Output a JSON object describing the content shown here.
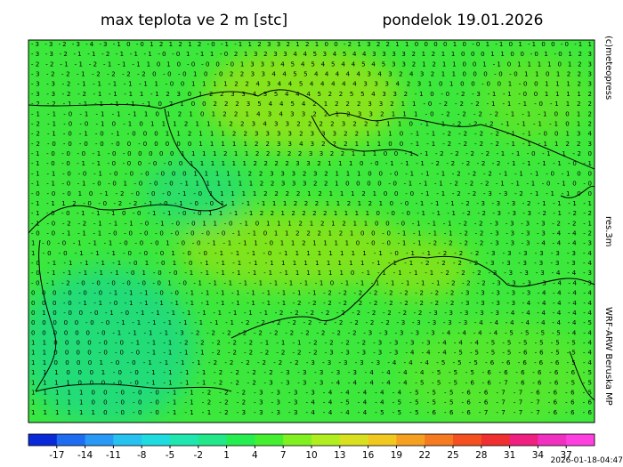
{
  "title": "max teplota ve 2 m [stc]",
  "date": "pondelok 19.01.2026",
  "credit": "(c)meteopress",
  "resolution": "res.3m",
  "model": "WRF-ARW Beruska MP",
  "timestamp": "2026-01-18-04:47",
  "grid_rows": [
    "-3 -3 -2 -3 -4 -3 -1 0 -0 1 2 1 2 1 2 -0 -1 -1 1 2 3 3 2 1 2 1 0 0 -2 1 3 2 2 1 1 0 0 0 0 1 0 -0 1 -1 0 1 -1 0 0 -0 -1 1",
    "-3 -3 -2 -1 -1 -2 -1 -1 -1 -0 -0 1 -1 1 -0 2 1 3 2 3 3 4 4 5 3 4 5 4 4 3 3 3 3 2 1 2 1 1 0 0 0 1 1 0 0 -0 1 -0 1 2 3",
    "-2 -2 -1 -1 -2 -1 -1 -1 1 0 1 0 -0 -0 0 -0 1 3 3 3 4 5 4 5 4 5 4 4 5 4 5 3 3 2 1 2 1 1 0 0 1 -1 0 1 1 1 1 0 1 2 3",
    "-3 -2 -2 -1 -2 -2 -2 -2 0 -0 -0 1 0 -0 2 2 3 3 4 4 5 5 4 4 4 4 4 3 4 3 2 4 3 2 1 1 0 0 0 -0 -0 1 1 0 1 2 2 3",
    "-3 -3 -2 -1 -1 -1 -1 -1 1 -0 0 1 1 1 1 2 2 4 3 4 4 5 4 4 4 4 4 3 3 3 4 2 3 1 0 1 0 0 -0 0 1 -0 0 1 1 1 2 3",
    "-3 -3 -2 -2 -1 -1 -1 1 -1 2 3 0 1 2 2 3 3 4 3 5 4 4 4 5 2 2 5 5 4 3 3 2 -1 0 -0 -2 -3 -1 -1 -0 0 1 1 1 1 2",
    "-2 -2 -1 -1 -1 -1 -1 -1 0 2 1 0 0 2 2 2 3 5 4 4 5 4 2 1 2 2 2 3 3 2 1 1 -0 -2 -2 -2 -1 -1 -1 -0 -1 1 2 2",
    "-1 -1 -0 -1 -1 -1 -1 1 0 1 2 1 0 1 2 2 1 4 3 4 3 3 2 2 1 2 3 3 2 1 1 1 -0 -2 -2 -2 -2 -1 -1 -1 0 0 1 2",
    "-2 -1 -0 -0 -1 0 -1 0 1 1 1 2 1 1 1 2 2 3 4 3 3 2 2 2 2 3 2 2 2 1 1 0 -1 -1 -2 -2 -2 -1 -1 -1 -1 0 1 2",
    "-2 -1 -0 -1 -0 -1 -0 0 0 1 1 2 1 1 1 2 2 3 3 3 3 2 3 3 3 2 2 1 1 1 0 -1 -1 -2 -2 -2 -2 -1 -1 -0 0 1 3 4",
    "-2 -0 -0 -0 -0 -0 0 -0 0 0 0 0 1 1 1 1 1 2 2 3 3 4 3 2 2 2 1 1 1 0 0 -1 -1 -2 -2 -2 -2 -1 -1 -1 1 2 2 3",
    "-1 -0 -0 -0 -1 -0 -0 0 0 0 0 1 1 1 1 2 1 1 2 2 2 2 2 3 3 2 2 1 1 1 0 0 -1 -1 -2 -2 -2 -2 -1 -1 -0 -1 -1 -2 0",
    "-1 -0 -0 -1 -1 -0 -0 0 -0 -0 0 1 1 1 1 1 1 2 2 2 2 3 3 2 1 1 1 0 -0 -1 -1 -1 -2 -2 -2 -2 -2 -1 -1 -1 -1 -0 -1",
    "-1 -1 -0 -0 -1 -0 -0 -0 -0 0 0 1 1 1 1 1 2 2 3 3 3 2 3 2 1 1 1 0 0 -0 -1 -1 -1 -2 -2 -2 -1 -1 -1 -0 -1 0 0",
    "-1 -1 -0 -1 -0 -0 1 -0 -0 -0 -1 1 1 1 1 1 1 2 2 3 3 3 2 2 1 0 0 0 0 -0 -1 -1 -1 -2 -2 -2 -1 -1 -1 -0 -1 0 -0",
    "-0 -0 -0 1 0 -1 -2 -0 -0 -0 -1 -0 1 1 1 1 1 2 2 2 2 1 2 1 1 1 2 1 0 0 -0 -1 -1 -2 -2 -3 -3 -2 -1 -1 -1 0 0",
    "-1 -1 1 2 -0 -0 -2 -2 -1 -0 -1 -0 -0 1 1 -1 -1 1 1 2 2 2 1 1 2 1 2 1 0 -0 -1 -1 -1 -2 -3 -3 -3 -2 -1 -1 -1 -1",
    "-1 -0 -0 -1 -1 -1 0 -0 -1 -1 -0 -0 1 1 -1 -1 2 2 1 2 2 2 2 1 1 1 1 0 -0 -0 -1 -1 -1 -2 -2 -3 -3 -3 -2 -1 -2 -2",
    "-1 -0 -2 -2 -1 -1 -1 -0 -1 -0 -0 1 1 -0 -1 0 1 1 1 2 1 2 1 2 1 1 0 0 -0 -1 -1 -1 -2 -2 -3 -3 -3 -3 -2 -2 -1",
    "-0 -0 -1 -1 -1 -0 -0 -0 -0 -0 -0 -0 -0 -1 -1 0 1 1 2 2 2 1 2 1 0 0 -0 -1 -1 -1 -1 -2 -2 -3 -3 -3 -3 -4 -4 -2",
    "1 -0 -0 -1 -1 -1 -0 -0 -0 1 -0 -0 -1 -1 -1 1 -0 1 1 2 1 1 1 1 0 -0 -0 -1 -1 -2 -2 -2 -2 -3 -3 -3 -4 -4 -4 -3",
    "1 -0 -0 -1 -1 -1 -0 -0 -0 1 -0 -0 -1 -1 -1 -0 -1 1 1 1 1 1 1 1 -1 -0 -1 -1 -2 -2 -2 -3 -3 -3 -3 -3 -3 -4",
    "-0 -1 -1 -1 -1 -1 -0 1 -0 1 -0 -1 -1 -1 -1 -1 1 1 1 1 1 1 1 1 -1 -1 -1 -2 -2 -2 -2 -3 -3 -3 -3 -3 -3 -4",
    "-0 -1 -1 -1 -1 -1 -0 1 -0 -0 -1 -1 -1 -1 -1 -1 -1 1 1 1 1 1 0 -1 -1 -1 -1 -1 -2 -2 -2 -3 -3 -3 -3 -4 -4 -3",
    "-0 -1 -2 -0 -0 -0 -0 -0 -0 1 -0 -1 -1 -1 -1 -1 -1 -1 -1 -1 0 -1 -1 -1 -1 -1 -1 -1 -2 -2 -2 -3 -3 -3 -3 -4 -4 -3",
    "0 0 0 -0 -0 -0 -1 -1 -1 -0 -0 -1 -1 -1 -1 -1 -1 -1 -1 -1 -2 -2 -2 -2 -2 -2 -2 -2 -2 -3 -3 -3 -3 -3 -4 -4 -4 -4",
    "0 0 0 -0 -1 -1 -0 -1 -1 -1 -1 -1 -1 -1 -1 -1 -1 -1 -2 -2 -2 -2 -2 -2 -2 -2 -2 -2 -2 -3 -3 -3 -3 -4 -4 -4 -4 -4",
    "0 1 0 -0 0 -0 -1 -0 -1 -1 -1 -1 -1 -1 -1 -1 -1 -2 -2 -2 -2 -2 -2 -2 -2 -2 -2 -3 -3 -3 -3 -3 -4 -4 -4 -4 -4 -4",
    "0 0 0 0 0 -0 -0 -1 -1 -1 -1 -1 -1 -1 -1 -2 -2 -2 -2 -2 -2 -2 -2 -2 -2 -3 -3 -3 -3 -3 -4 -4 -4 -4 -4 -4 -4 -5",
    "0 0 0 0 0 0 -0 -1 -1 -1 -1 -3 -2 -2 -2 -2 -2 -2 -2 -2 -2 -2 -2 -3 -3 -3 -3 -3 -4 -4 -4 -4 -5 -5 -5 -5 -4 -4",
    "1 1 0 0 0 0 -0 -0 -1 -1 -1 -2 -2 -2 -2 -2 -1 -1 -1 -2 -2 -2 -2 -3 -3 -3 -3 -4 -4 -4 -5 -5 -5 -5 -5 -5 -4",
    "1 1 0 0 0 0 -0 -0 -0 -1 -1 -1 -1 -2 -2 -2 -2 -2 -2 -2 -3 -3 -3 -3 -3 -4 -4 -4 -5 -5 -5 -5 -6 -6 -5 -5 -4",
    "1 1 0 0 0 0 1 -0 -0 -1 -1 -1 -1 -2 -2 -2 -2 -2 -2 -3 -3 -3 -3 -3 -4 -4 -4 -5 -5 -5 -6 -6 -6 -6 -6 -5 -4",
    "1 1 1 0 0 0 1 -0 -0 -1 -1 -1 -1 -2 -2 -2 -2 -3 -3 -3 -3 -3 -4 -4 -4 -4 -5 -5 -5 -6 -6 -6 -6 -6 -6 -5",
    "1 1 1 1 0 0 0 -0 -0 -1 -1 -1 -1 -2 -2 -2 -3 -3 -3 -3 -4 -4 -4 -4 -4 -5 -5 -5 -6 -6 -7 -6 -6 -6 -5 -5",
    "1 1 1 1 1 0 0 -0 -0 -0 -1 -1 -2 -2 -2 -3 -3 -3 -3 -4 -4 -4 -4 -4 -5 -5 -5 -6 -6 -7 -7 -6 -6 -6 -5",
    "1 1 1 1 1 0 0 -0 -0 -0 -1 -1 -2 -2 -2 -3 -3 -3 -4 -4 -5 -4 -4 -5 -5 -5 -5 -6 -6 -7 -7 -7 -6 -6 -6",
    "1 1 1 1 1 1 0 -0 -0 -0 -1 -1 -1 -2 -3 -3 -3 -3 -4 -4 -4 -4 -5 -5 -5 -6 -6 -6 -7 -7 -7 -7 -6 -6 -6"
  ],
  "colorbar": {
    "lim": [
      -20,
      40
    ],
    "ticks": [
      -17,
      -14,
      -11,
      -8,
      -5,
      -2,
      1,
      4,
      7,
      10,
      13,
      16,
      19,
      22,
      25,
      28,
      31,
      34,
      37
    ],
    "colors": [
      "#0a2ad8",
      "#1e6cf0",
      "#2a98f5",
      "#27c2f0",
      "#1fdce0",
      "#20e6b0",
      "#22e88a",
      "#27ee50",
      "#45f030",
      "#80f020",
      "#b0ee20",
      "#d8e020",
      "#f0c820",
      "#f5a020",
      "#f57a20",
      "#f55020",
      "#f03030",
      "#f02080",
      "#f030c0",
      "#ff40e0"
    ]
  }
}
